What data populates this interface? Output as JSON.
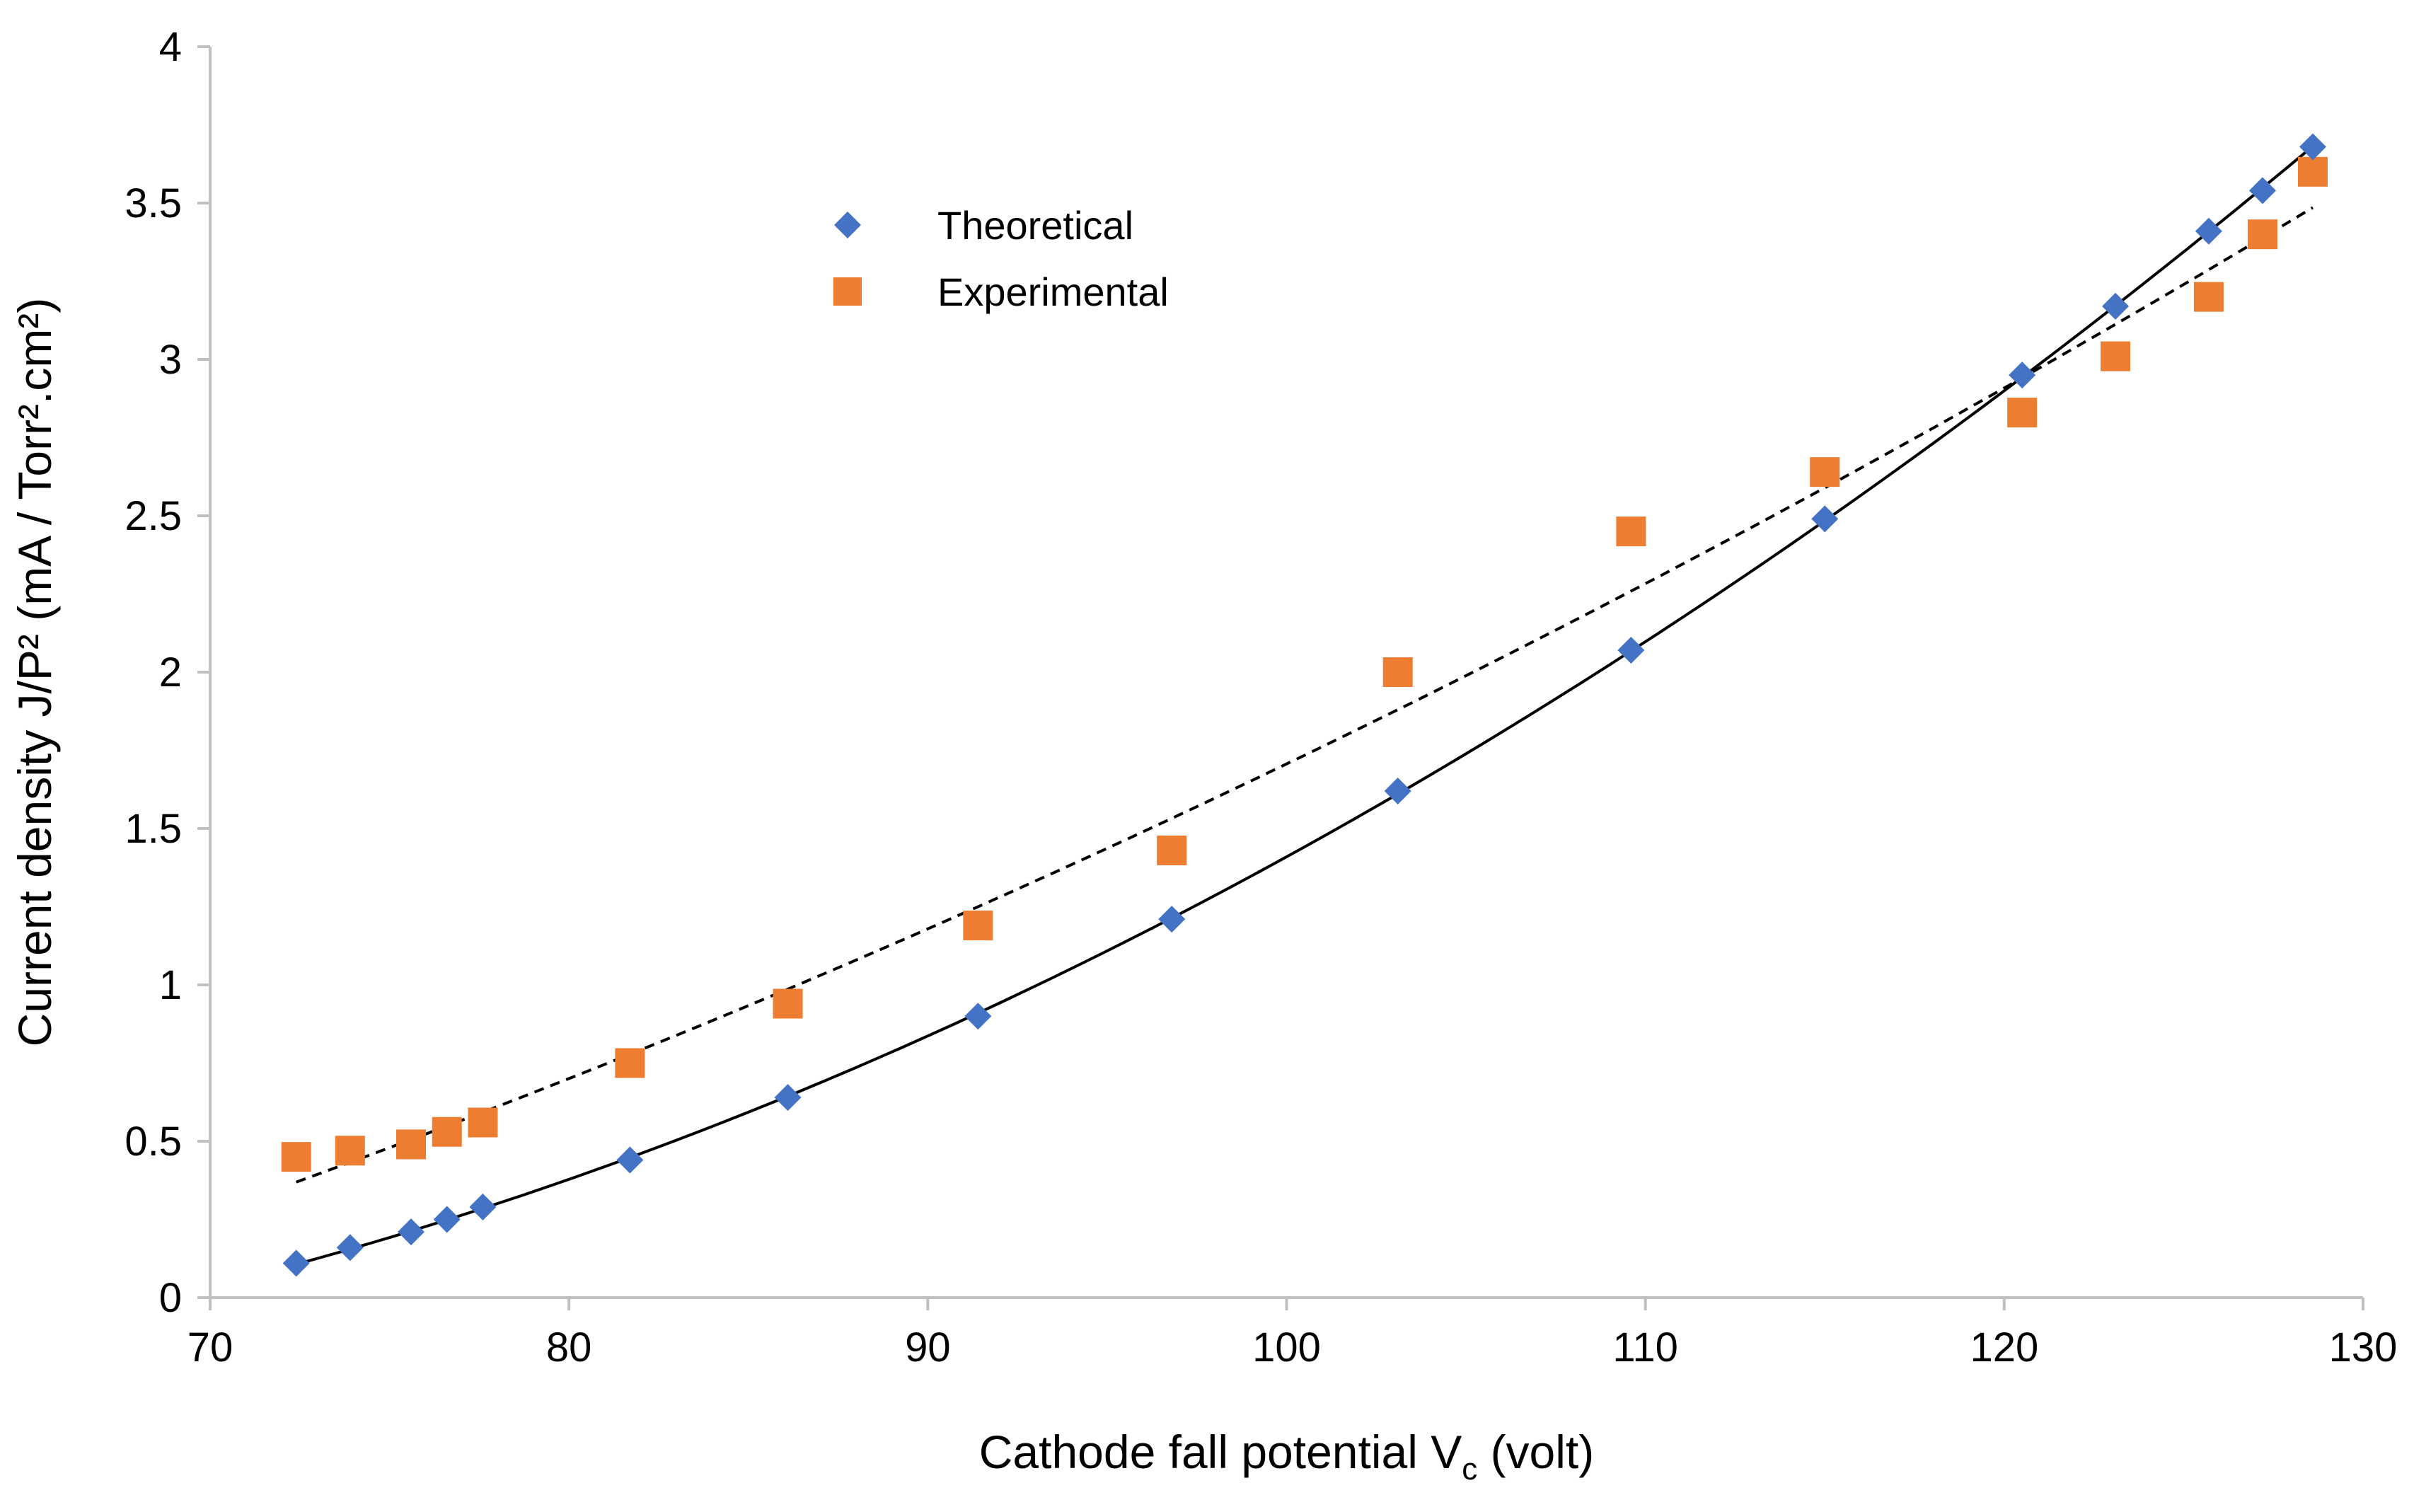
{
  "chart_data": {
    "type": "scatter",
    "title": "",
    "xlabel": "Cathode fall potential V",
    "xlabel_subscript": "c",
    "xlabel_suffix": " (volt)",
    "ylabel": "Current density  J/P² (mA / Torr².cm²)",
    "xlim": [
      70,
      130
    ],
    "ylim": [
      0,
      4
    ],
    "x_ticks": [
      70,
      80,
      90,
      100,
      110,
      120,
      130
    ],
    "y_ticks": [
      0,
      0.5,
      1,
      1.5,
      2,
      2.5,
      3,
      3.5,
      4
    ],
    "y_tick_labels": [
      "0",
      "0.5",
      "1",
      "1.5",
      "2",
      "2.5",
      "3",
      "3.5",
      "4"
    ],
    "grid": false,
    "legend_position": "top-left",
    "series": [
      {
        "name": "Theoretical",
        "marker": "diamond",
        "color": "#4472C4",
        "trendline": "solid",
        "trendline_color": "#000000",
        "x": [
          72.4,
          73.9,
          75.6,
          76.6,
          77.6,
          81.7,
          86.1,
          91.4,
          96.8,
          103.1,
          109.6,
          115.0,
          120.5,
          123.1,
          125.7,
          127.2,
          128.6
        ],
        "y": [
          0.11,
          0.16,
          0.21,
          0.25,
          0.29,
          0.44,
          0.64,
          0.9,
          1.21,
          1.62,
          2.07,
          2.49,
          2.95,
          3.17,
          3.41,
          3.54,
          3.68
        ]
      },
      {
        "name": "Experimental",
        "marker": "square",
        "color": "#ED7D31",
        "trendline": "dashed",
        "trendline_color": "#000000",
        "x": [
          72.4,
          73.9,
          75.6,
          76.6,
          77.6,
          81.7,
          86.1,
          91.4,
          96.8,
          103.1,
          109.6,
          115.0,
          120.5,
          123.1,
          125.7,
          127.2,
          128.6
        ],
        "y": [
          0.45,
          0.47,
          0.49,
          0.53,
          0.56,
          0.75,
          0.94,
          1.19,
          1.43,
          2.0,
          2.45,
          2.64,
          2.83,
          3.01,
          3.2,
          3.4,
          3.6
        ]
      }
    ]
  }
}
